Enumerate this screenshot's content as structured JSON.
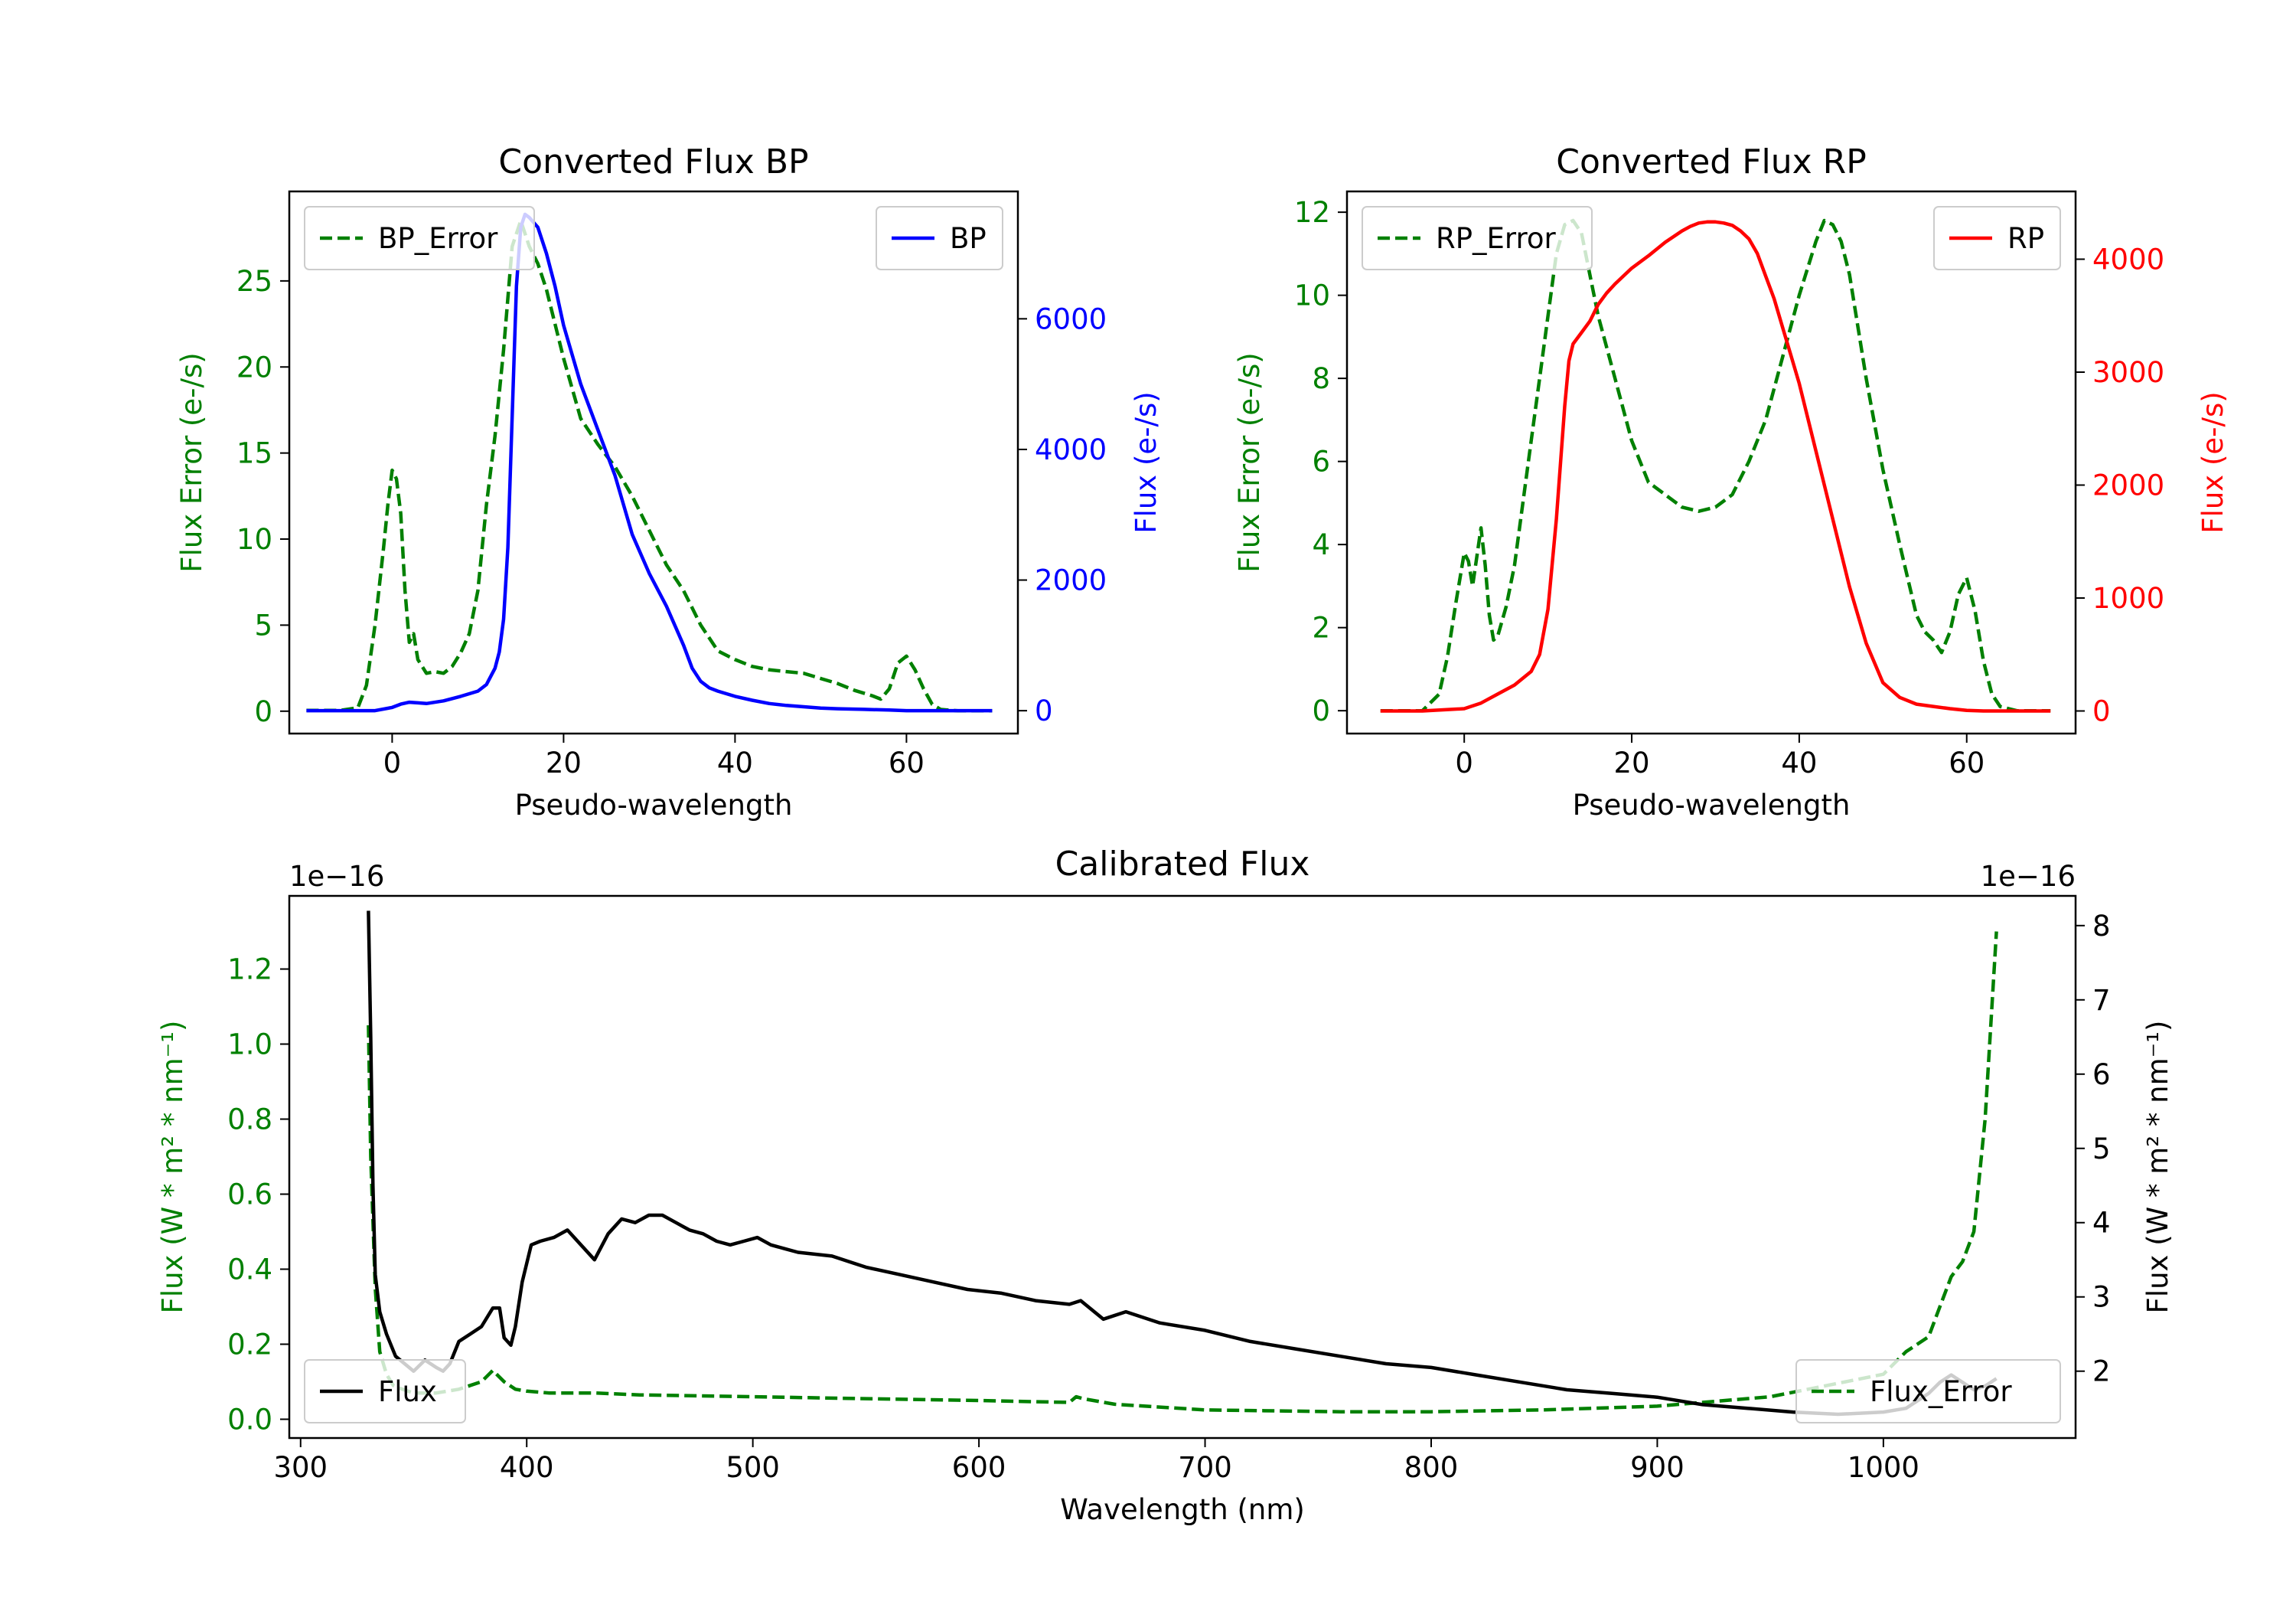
{
  "chart_data": [
    {
      "id": "bp",
      "type": "line",
      "title": "Converted Flux BP",
      "xlabel": "Pseudo-wavelength",
      "ylabel_left": "Flux Error (e-/s)",
      "ylabel_right": "Flux (e-/s)",
      "xlim": [
        -12,
        73
      ],
      "ylim_left": [
        -1.3,
        30.2
      ],
      "ylim_right": [
        -350,
        7950
      ],
      "xticks": [
        0,
        20,
        40,
        60
      ],
      "xtick_labels": [
        "0",
        "20",
        "40",
        "60"
      ],
      "yticks_left": [
        0,
        5,
        10,
        15,
        20,
        25
      ],
      "ytick_labels_left": [
        "0",
        "5",
        "10",
        "15",
        "20",
        "25"
      ],
      "yticks_right": [
        0,
        2000,
        4000,
        6000
      ],
      "ytick_labels_right": [
        "0",
        "2000",
        "4000",
        "6000"
      ],
      "left_color": "#008000",
      "right_color": "#0000ff",
      "series": [
        {
          "name": "BP_Error",
          "axis": "left",
          "style": "dashed",
          "color": "#008000",
          "legend": "upper left",
          "x": [
            -10,
            -6,
            -4,
            -3,
            -2,
            -1,
            -0.5,
            0,
            0.5,
            1,
            1.5,
            2,
            2.5,
            3,
            3.5,
            4,
            5,
            6,
            7,
            8,
            9,
            10,
            11,
            12,
            13,
            14,
            15,
            16,
            17,
            18,
            20,
            22,
            24,
            26,
            28,
            30,
            32,
            34,
            36,
            38,
            40,
            42,
            44,
            46,
            48,
            50,
            52,
            54,
            56,
            57,
            58,
            59,
            60,
            61,
            62,
            63,
            64,
            66,
            70
          ],
          "values": [
            0.05,
            0.05,
            0.2,
            1.5,
            5,
            9.5,
            12,
            14,
            13.5,
            11.5,
            7,
            4,
            4.5,
            3,
            2.6,
            2.2,
            2.3,
            2.2,
            2.6,
            3.4,
            4.5,
            7,
            12,
            16,
            21,
            27,
            28.5,
            27,
            26,
            24.5,
            20.5,
            17,
            15.5,
            14.2,
            12.5,
            10.5,
            8.5,
            7,
            5,
            3.5,
            3,
            2.6,
            2.4,
            2.3,
            2.2,
            1.9,
            1.6,
            1.2,
            0.9,
            0.7,
            1.3,
            2.8,
            3.2,
            2.4,
            1.3,
            0.4,
            0.1,
            0.02,
            0.02
          ]
        },
        {
          "name": "BP",
          "axis": "right",
          "style": "solid",
          "color": "#0000ff",
          "legend": "upper right",
          "x": [
            -10,
            -4,
            -2,
            0,
            1,
            2,
            3,
            4,
            6,
            8,
            10,
            11,
            12,
            12.5,
            13,
            13.5,
            14,
            14.5,
            15,
            15.5,
            16,
            17,
            18,
            19,
            20,
            22,
            24,
            26,
            28,
            30,
            32,
            34,
            35,
            36,
            37,
            38,
            40,
            42,
            44,
            46,
            48,
            50,
            52,
            55,
            58,
            60,
            62,
            66,
            70
          ],
          "values": [
            0,
            0,
            0,
            50,
            100,
            130,
            120,
            110,
            150,
            220,
            300,
            400,
            650,
            900,
            1400,
            2500,
            4500,
            6500,
            7400,
            7600,
            7550,
            7400,
            7000,
            6500,
            5900,
            5000,
            4300,
            3600,
            2700,
            2100,
            1600,
            1000,
            650,
            450,
            350,
            300,
            220,
            160,
            110,
            80,
            60,
            40,
            30,
            20,
            10,
            0,
            0,
            0,
            0
          ]
        }
      ]
    },
    {
      "id": "rp",
      "type": "line",
      "title": "Converted Flux RP",
      "xlabel": "Pseudo-wavelength",
      "ylabel_left": "Flux Error (e-/s)",
      "ylabel_right": "Flux (e-/s)",
      "xlim": [
        -14,
        73
      ],
      "ylim_left": [
        -0.55,
        12.5
      ],
      "ylim_right": [
        -200,
        4600
      ],
      "xticks": [
        0,
        20,
        40,
        60
      ],
      "xtick_labels": [
        "0",
        "20",
        "40",
        "60"
      ],
      "yticks_left": [
        0,
        2,
        4,
        6,
        8,
        10,
        12
      ],
      "ytick_labels_left": [
        "0",
        "2",
        "4",
        "6",
        "8",
        "10",
        "12"
      ],
      "yticks_right": [
        0,
        1000,
        2000,
        3000,
        4000
      ],
      "ytick_labels_right": [
        "0",
        "1000",
        "2000",
        "3000",
        "4000"
      ],
      "left_color": "#008000",
      "right_color": "#ff0000",
      "series": [
        {
          "name": "RP_Error",
          "axis": "left",
          "style": "dashed",
          "color": "#008000",
          "legend": "upper left",
          "x": [
            -10,
            -5,
            -3,
            -2,
            -1,
            0,
            0.5,
            1,
            1.5,
            2,
            2.5,
            3,
            3.5,
            4,
            5,
            6,
            7,
            8,
            9,
            10,
            11,
            12,
            13,
            14,
            15,
            16,
            18,
            20,
            22,
            24,
            26,
            28,
            30,
            32,
            34,
            36,
            38,
            40,
            42,
            43,
            44,
            45,
            46,
            48,
            50,
            52,
            54,
            55,
            56,
            57,
            58,
            59,
            60,
            61,
            62,
            63,
            64,
            66,
            70
          ],
          "values": [
            0,
            0,
            0.4,
            1.3,
            2.6,
            3.8,
            3.6,
            3,
            3.7,
            4.4,
            3.5,
            2.3,
            1.7,
            1.8,
            2.5,
            3.5,
            5,
            6.5,
            8,
            9.5,
            11,
            11.7,
            11.8,
            11.5,
            10.5,
            9.5,
            8,
            6.5,
            5.5,
            5.2,
            4.9,
            4.8,
            4.9,
            5.2,
            6,
            7,
            8.5,
            10,
            11.3,
            11.8,
            11.7,
            11.3,
            10.5,
            8,
            5.8,
            4,
            2.3,
            1.9,
            1.7,
            1.4,
            1.9,
            2.8,
            3.2,
            2.4,
            1.2,
            0.4,
            0.1,
            0,
            0
          ]
        },
        {
          "name": "RP",
          "axis": "right",
          "style": "solid",
          "color": "#ff0000",
          "legend": "upper right",
          "x": [
            -10,
            -5,
            0,
            2,
            4,
            6,
            8,
            9,
            10,
            11,
            12,
            12.5,
            13,
            14,
            15,
            16,
            17,
            18,
            20,
            22,
            24,
            26,
            27,
            28,
            29,
            30,
            31,
            32,
            33,
            34,
            35,
            36,
            37,
            38,
            39,
            40,
            42,
            44,
            46,
            48,
            50,
            52,
            54,
            56,
            58,
            60,
            62,
            66,
            70
          ],
          "values": [
            0,
            0,
            20,
            70,
            150,
            230,
            350,
            500,
            900,
            1700,
            2700,
            3100,
            3250,
            3350,
            3450,
            3600,
            3700,
            3780,
            3920,
            4030,
            4150,
            4250,
            4290,
            4320,
            4330,
            4330,
            4320,
            4300,
            4250,
            4180,
            4050,
            3850,
            3650,
            3400,
            3150,
            2900,
            2300,
            1700,
            1100,
            600,
            250,
            120,
            60,
            40,
            20,
            5,
            0,
            0,
            0
          ]
        }
      ]
    },
    {
      "id": "calibrated",
      "type": "line",
      "title": "Calibrated Flux",
      "xlabel": "Wavelength (nm)",
      "ylabel_left": "Flux (W * m² * nm⁻¹)",
      "ylabel_right": "Flux (W * m² * nm⁻¹)",
      "offset_left": "1e−16",
      "offset_right": "1e−16",
      "xlim": [
        295,
        1085
      ],
      "ylim_left": [
        -0.05,
        1.395
      ],
      "ylim_right": [
        1.1,
        8.4
      ],
      "xticks": [
        300,
        400,
        500,
        600,
        700,
        800,
        900,
        1000
      ],
      "xtick_labels": [
        "300",
        "400",
        "500",
        "600",
        "700",
        "800",
        "900",
        "1000"
      ],
      "yticks_left": [
        0.0,
        0.2,
        0.4,
        0.6,
        0.8,
        1.0,
        1.2
      ],
      "ytick_labels_left": [
        "0.0",
        "0.2",
        "0.4",
        "0.6",
        "0.8",
        "1.0",
        "1.2"
      ],
      "yticks_right": [
        2,
        3,
        4,
        5,
        6,
        7,
        8
      ],
      "ytick_labels_right": [
        "2",
        "3",
        "4",
        "5",
        "6",
        "7",
        "8"
      ],
      "left_color": "#008000",
      "right_color": "#000000",
      "series": [
        {
          "name": "Flux_Error",
          "axis": "left",
          "style": "dashed",
          "color": "#008000",
          "legend": "lower right",
          "x": [
            330,
            331,
            333,
            335,
            338,
            341,
            345,
            350,
            360,
            370,
            380,
            385,
            390,
            395,
            400,
            410,
            430,
            450,
            500,
            550,
            600,
            640,
            643,
            646,
            660,
            700,
            760,
            800,
            850,
            900,
            950,
            1000,
            1010,
            1020,
            1025,
            1030,
            1035,
            1040,
            1045,
            1050
          ],
          "values": [
            1.05,
            0.7,
            0.35,
            0.18,
            0.12,
            0.09,
            0.08,
            0.07,
            0.07,
            0.08,
            0.1,
            0.13,
            0.1,
            0.08,
            0.075,
            0.07,
            0.07,
            0.065,
            0.06,
            0.055,
            0.05,
            0.045,
            0.06,
            0.055,
            0.04,
            0.025,
            0.02,
            0.02,
            0.025,
            0.035,
            0.06,
            0.12,
            0.18,
            0.22,
            0.3,
            0.38,
            0.42,
            0.5,
            0.8,
            1.3
          ]
        },
        {
          "name": "Flux",
          "axis": "right",
          "style": "solid",
          "color": "#000000",
          "legend": "lower left",
          "x": [
            330,
            331,
            332,
            333,
            335,
            338,
            342,
            346,
            350,
            355,
            360,
            363,
            366,
            370,
            375,
            380,
            385,
            388,
            390,
            393,
            395,
            398,
            402,
            406,
            412,
            418,
            424,
            430,
            436,
            442,
            448,
            454,
            460,
            466,
            472,
            478,
            484,
            490,
            496,
            502,
            508,
            514,
            520,
            535,
            550,
            565,
            580,
            595,
            610,
            625,
            640,
            645,
            655,
            665,
            680,
            700,
            720,
            740,
            760,
            780,
            800,
            820,
            840,
            860,
            880,
            900,
            920,
            940,
            960,
            980,
            1000,
            1010,
            1020,
            1025,
            1030,
            1035,
            1040,
            1045,
            1050
          ],
          "values": [
            8.2,
            6.5,
            4.5,
            3.3,
            2.8,
            2.5,
            2.2,
            2.1,
            2.0,
            2.15,
            2.05,
            2.0,
            2.1,
            2.4,
            2.5,
            2.6,
            2.85,
            2.85,
            2.45,
            2.35,
            2.6,
            3.2,
            3.7,
            3.75,
            3.8,
            3.9,
            3.7,
            3.5,
            3.85,
            4.05,
            4.0,
            4.1,
            4.1,
            4.0,
            3.9,
            3.85,
            3.75,
            3.7,
            3.75,
            3.8,
            3.7,
            3.65,
            3.6,
            3.55,
            3.4,
            3.3,
            3.2,
            3.1,
            3.05,
            2.95,
            2.9,
            2.95,
            2.7,
            2.8,
            2.65,
            2.55,
            2.4,
            2.3,
            2.2,
            2.1,
            2.05,
            1.95,
            1.85,
            1.75,
            1.7,
            1.65,
            1.55,
            1.5,
            1.45,
            1.42,
            1.45,
            1.5,
            1.7,
            1.85,
            1.95,
            1.85,
            1.75,
            1.8,
            1.9
          ]
        }
      ]
    }
  ]
}
